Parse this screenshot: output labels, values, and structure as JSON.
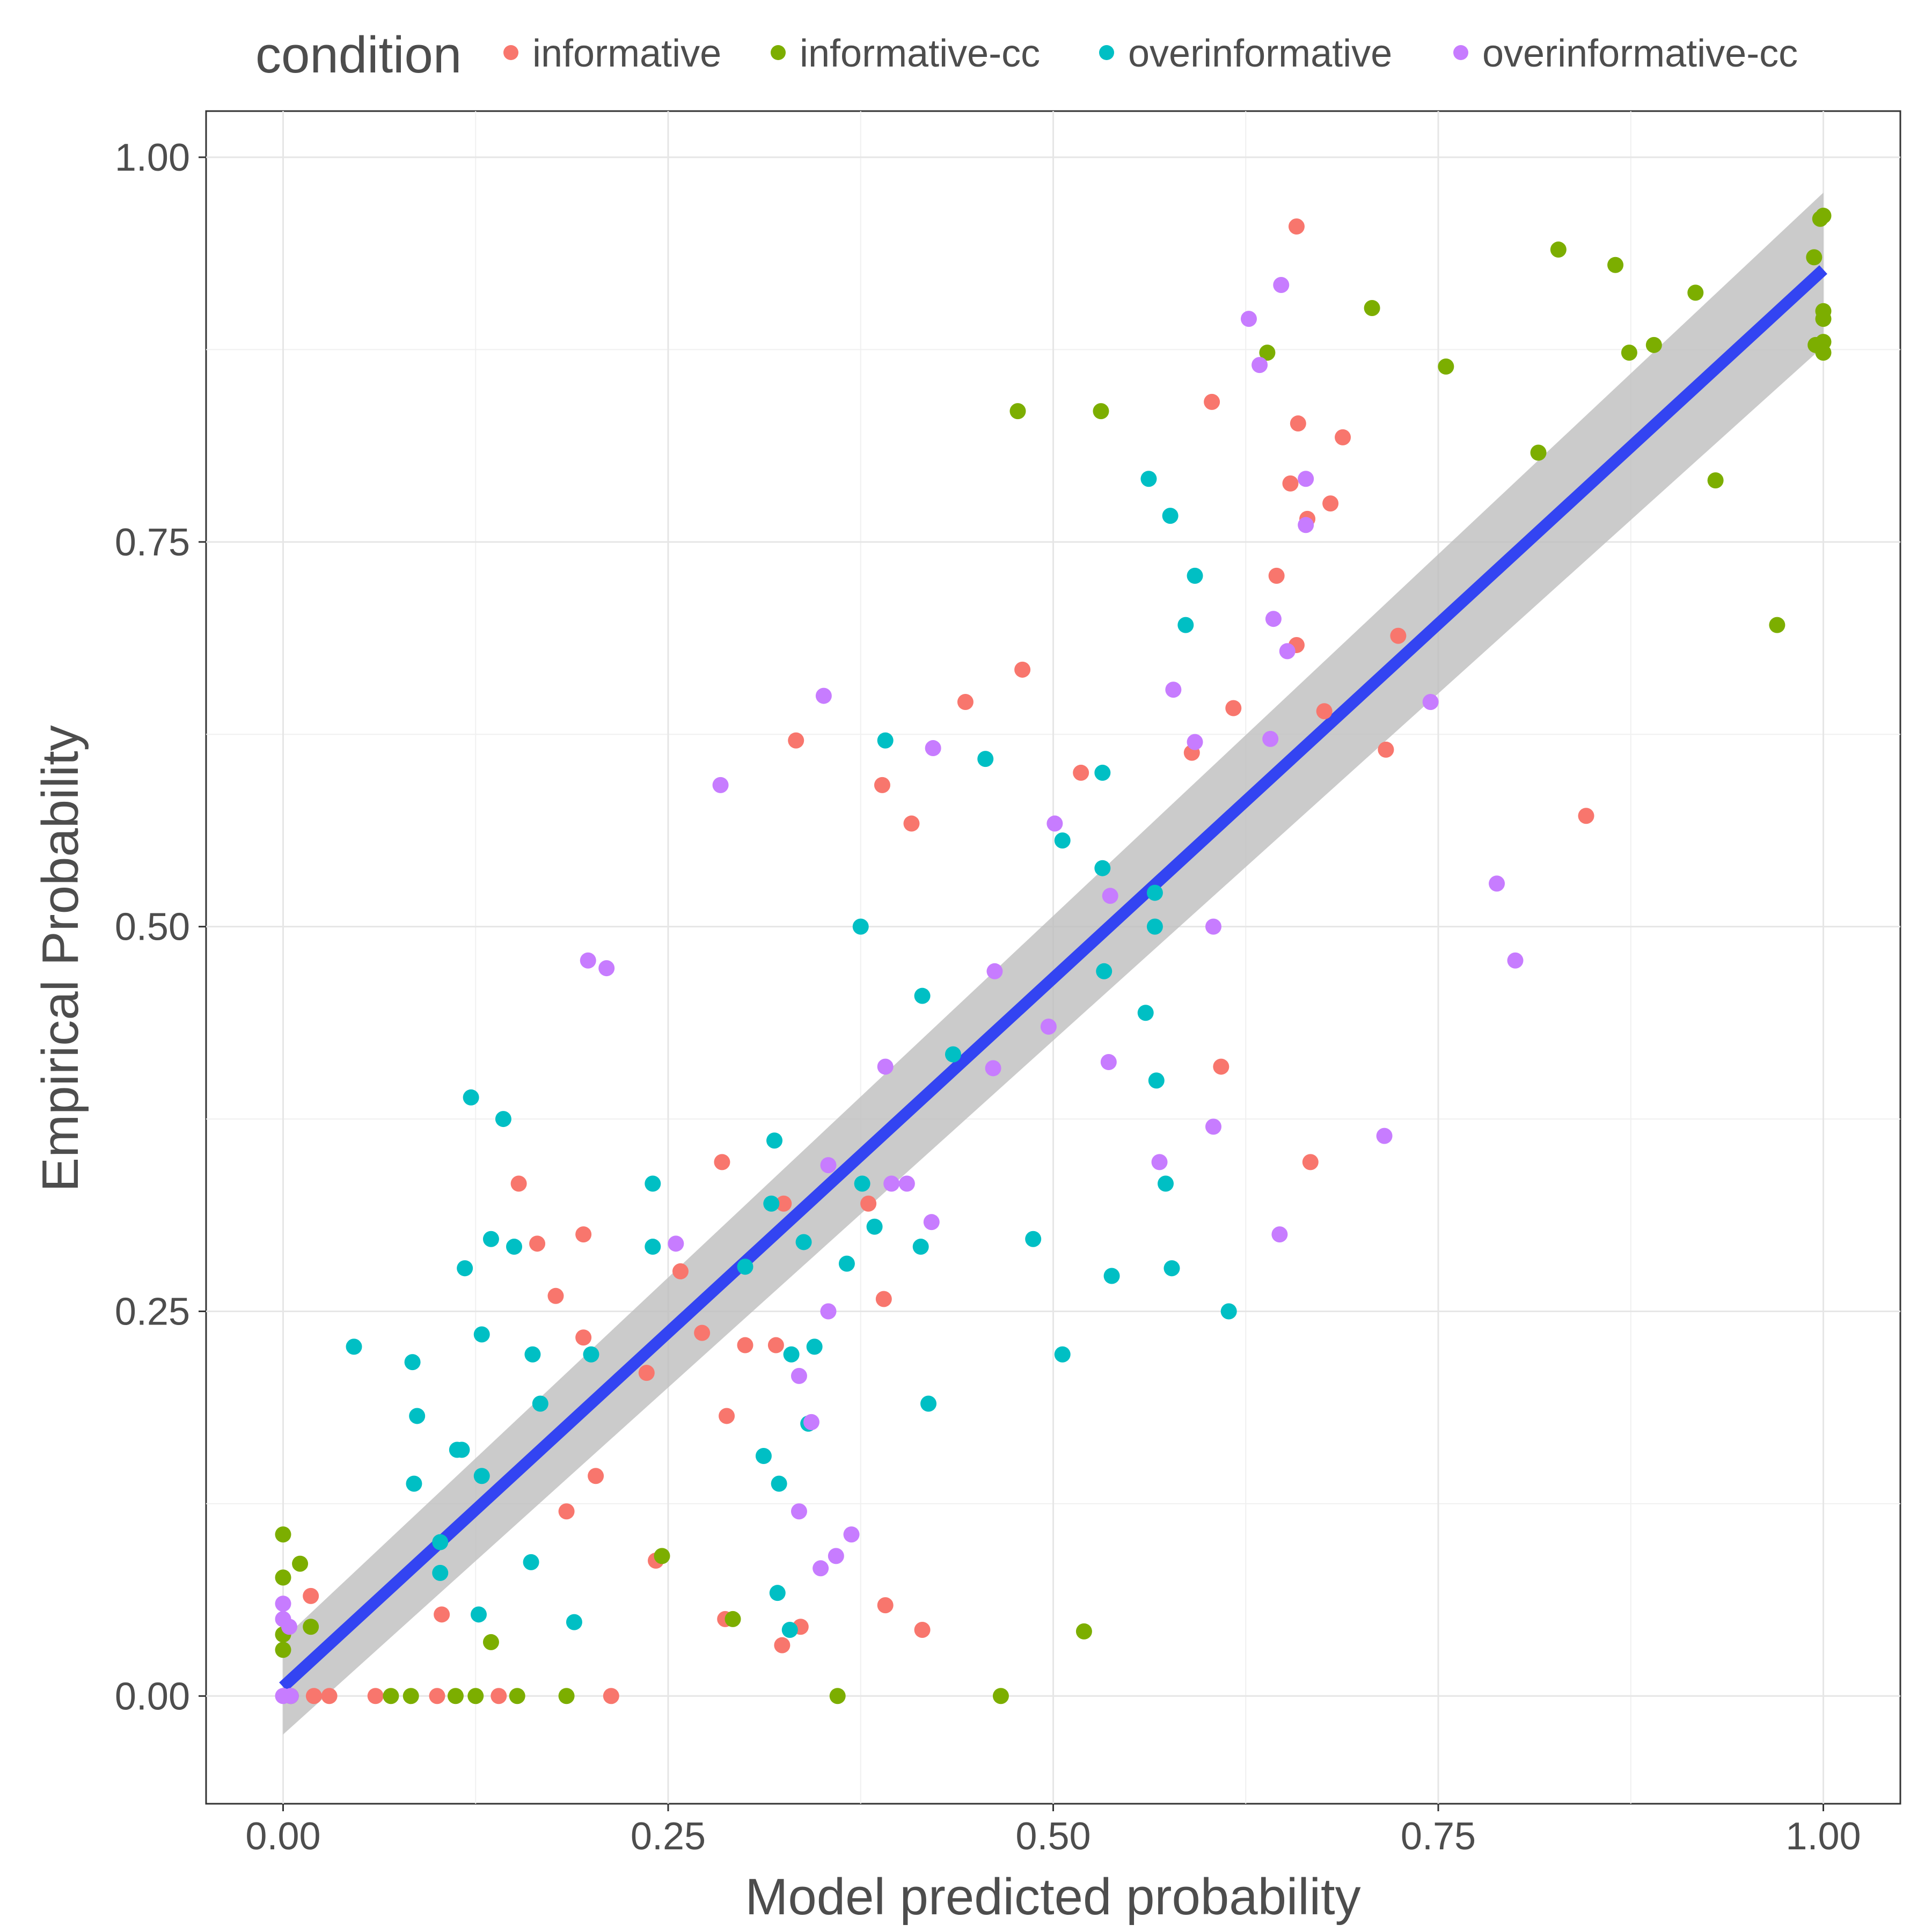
{
  "chart_data": {
    "type": "scatter",
    "xlabel": "Model predicted probability",
    "ylabel": "Empirical Probability",
    "xlim": [
      -0.05,
      1.05
    ],
    "ylim": [
      -0.07,
      1.03
    ],
    "x_ticks": [
      "0.00",
      "0.25",
      "0.50",
      "0.75",
      "1.00"
    ],
    "y_ticks": [
      "0.00",
      "0.25",
      "0.50",
      "0.75",
      "1.00"
    ],
    "grid": true,
    "legend": {
      "title": "condition",
      "position": "top",
      "entries": [
        "informative",
        "informative-cc",
        "overinformative",
        "overinformative-cc"
      ]
    },
    "colors": {
      "informative": "#F8766D",
      "informative-cc": "#7CAE00",
      "overinformative": "#00BFC4",
      "overinformative-cc": "#C77CFF",
      "fit_line": "#3344F2",
      "confidence_band": "#BEBEBE"
    },
    "fit": {
      "x": [
        0.0,
        1.0
      ],
      "y": [
        0.006,
        0.927
      ],
      "ci_lower": [
        -0.025,
        0.877
      ],
      "ci_upper": [
        0.037,
        0.977
      ]
    },
    "series": [
      {
        "name": "informative",
        "points": [
          [
            0.658,
            0.955
          ],
          [
            0.603,
            0.841
          ],
          [
            0.659,
            0.827
          ],
          [
            0.688,
            0.818
          ],
          [
            0.654,
            0.788
          ],
          [
            0.68,
            0.775
          ],
          [
            0.665,
            0.765
          ],
          [
            0.645,
            0.728
          ],
          [
            0.658,
            0.683
          ],
          [
            0.724,
            0.689
          ],
          [
            0.48,
            0.667
          ],
          [
            0.443,
            0.646
          ],
          [
            0.617,
            0.642
          ],
          [
            0.676,
            0.64
          ],
          [
            0.333,
            0.621
          ],
          [
            0.716,
            0.615
          ],
          [
            0.59,
            0.613
          ],
          [
            0.518,
            0.6
          ],
          [
            0.389,
            0.592
          ],
          [
            0.408,
            0.567
          ],
          [
            0.846,
            0.572
          ],
          [
            0.609,
            0.409
          ],
          [
            0.667,
            0.347
          ],
          [
            0.285,
            0.347
          ],
          [
            0.153,
            0.333
          ],
          [
            0.38,
            0.32
          ],
          [
            0.325,
            0.32
          ],
          [
            0.195,
            0.3
          ],
          [
            0.165,
            0.294
          ],
          [
            0.258,
            0.276
          ],
          [
            0.177,
            0.26
          ],
          [
            0.39,
            0.258
          ],
          [
            0.195,
            0.233
          ],
          [
            0.272,
            0.236
          ],
          [
            0.3,
            0.228
          ],
          [
            0.32,
            0.228
          ],
          [
            0.236,
            0.21
          ],
          [
            0.288,
            0.182
          ],
          [
            0.203,
            0.143
          ],
          [
            0.184,
            0.12
          ],
          [
            0.242,
            0.088
          ],
          [
            0.018,
            0.065
          ],
          [
            0.391,
            0.059
          ],
          [
            0.103,
            0.053
          ],
          [
            0.287,
            0.05
          ],
          [
            0.336,
            0.045
          ],
          [
            0.415,
            0.043
          ],
          [
            0.324,
            0.033
          ],
          [
            0.02,
            0.0
          ],
          [
            0.03,
            0.0
          ],
          [
            0.06,
            0.0
          ],
          [
            0.1,
            0.0
          ],
          [
            0.14,
            0.0
          ],
          [
            0.213,
            0.0
          ]
        ]
      },
      {
        "name": "informative-cc",
        "points": [
          [
            1.0,
            0.962
          ],
          [
            0.998,
            0.96
          ],
          [
            0.828,
            0.94
          ],
          [
            0.994,
            0.935
          ],
          [
            0.865,
            0.93
          ],
          [
            0.917,
            0.912
          ],
          [
            1.0,
            0.9
          ],
          [
            0.707,
            0.902
          ],
          [
            1.0,
            0.895
          ],
          [
            1.0,
            0.88
          ],
          [
            0.995,
            0.878
          ],
          [
            0.89,
            0.878
          ],
          [
            0.639,
            0.873
          ],
          [
            0.874,
            0.873
          ],
          [
            1.0,
            0.873
          ],
          [
            0.755,
            0.864
          ],
          [
            0.477,
            0.835
          ],
          [
            0.531,
            0.835
          ],
          [
            0.815,
            0.808
          ],
          [
            0.93,
            0.79
          ],
          [
            0.97,
            0.696
          ],
          [
            0.0,
            0.105
          ],
          [
            0.011,
            0.086
          ],
          [
            0.0,
            0.077
          ],
          [
            0.246,
            0.091
          ],
          [
            0.018,
            0.045
          ],
          [
            0.0,
            0.04
          ],
          [
            0.0,
            0.03
          ],
          [
            0.135,
            0.035
          ],
          [
            0.292,
            0.05
          ],
          [
            0.52,
            0.042
          ],
          [
            0.005,
            0.0
          ],
          [
            0.07,
            0.0
          ],
          [
            0.083,
            0.0
          ],
          [
            0.112,
            0.0
          ],
          [
            0.125,
            0.0
          ],
          [
            0.152,
            0.0
          ],
          [
            0.184,
            0.0
          ],
          [
            0.36,
            0.0
          ],
          [
            0.466,
            0.0
          ]
        ]
      },
      {
        "name": "overinformative",
        "points": [
          [
            0.562,
            0.791
          ],
          [
            0.576,
            0.767
          ],
          [
            0.592,
            0.728
          ],
          [
            0.586,
            0.696
          ],
          [
            0.391,
            0.621
          ],
          [
            0.456,
            0.609
          ],
          [
            0.532,
            0.6
          ],
          [
            0.506,
            0.556
          ],
          [
            0.532,
            0.538
          ],
          [
            0.566,
            0.522
          ],
          [
            0.375,
            0.5
          ],
          [
            0.566,
            0.5
          ],
          [
            0.533,
            0.471
          ],
          [
            0.415,
            0.455
          ],
          [
            0.56,
            0.444
          ],
          [
            0.435,
            0.417
          ],
          [
            0.567,
            0.4
          ],
          [
            0.122,
            0.389
          ],
          [
            0.143,
            0.375
          ],
          [
            0.319,
            0.361
          ],
          [
            0.24,
            0.333
          ],
          [
            0.573,
            0.333
          ],
          [
            0.376,
            0.333
          ],
          [
            0.317,
            0.32
          ],
          [
            0.384,
            0.305
          ],
          [
            0.135,
            0.297
          ],
          [
            0.487,
            0.297
          ],
          [
            0.338,
            0.295
          ],
          [
            0.24,
            0.292
          ],
          [
            0.15,
            0.292
          ],
          [
            0.414,
            0.292
          ],
          [
            0.366,
            0.281
          ],
          [
            0.3,
            0.279
          ],
          [
            0.118,
            0.278
          ],
          [
            0.577,
            0.278
          ],
          [
            0.538,
            0.273
          ],
          [
            0.614,
            0.25
          ],
          [
            0.046,
            0.227
          ],
          [
            0.129,
            0.235
          ],
          [
            0.345,
            0.227
          ],
          [
            0.2,
            0.222
          ],
          [
            0.162,
            0.222
          ],
          [
            0.33,
            0.222
          ],
          [
            0.506,
            0.222
          ],
          [
            0.084,
            0.217
          ],
          [
            0.167,
            0.19
          ],
          [
            0.419,
            0.19
          ],
          [
            0.087,
            0.182
          ],
          [
            0.341,
            0.177
          ],
          [
            0.113,
            0.16
          ],
          [
            0.116,
            0.16
          ],
          [
            0.312,
            0.156
          ],
          [
            0.129,
            0.143
          ],
          [
            0.085,
            0.138
          ],
          [
            0.322,
            0.138
          ],
          [
            0.102,
            0.1
          ],
          [
            0.161,
            0.087
          ],
          [
            0.102,
            0.08
          ],
          [
            0.321,
            0.067
          ],
          [
            0.127,
            0.053
          ],
          [
            0.189,
            0.048
          ],
          [
            0.329,
            0.043
          ]
        ]
      },
      {
        "name": "overinformative-cc",
        "points": [
          [
            0.648,
            0.917
          ],
          [
            0.627,
            0.895
          ],
          [
            0.634,
            0.865
          ],
          [
            0.664,
            0.791
          ],
          [
            0.664,
            0.761
          ],
          [
            0.643,
            0.7
          ],
          [
            0.652,
            0.679
          ],
          [
            0.578,
            0.654
          ],
          [
            0.351,
            0.65
          ],
          [
            0.745,
            0.646
          ],
          [
            0.641,
            0.622
          ],
          [
            0.592,
            0.62
          ],
          [
            0.422,
            0.616
          ],
          [
            0.284,
            0.592
          ],
          [
            0.501,
            0.567
          ],
          [
            0.537,
            0.52
          ],
          [
            0.788,
            0.528
          ],
          [
            0.604,
            0.5
          ],
          [
            0.198,
            0.478
          ],
          [
            0.21,
            0.473
          ],
          [
            0.8,
            0.478
          ],
          [
            0.462,
            0.471
          ],
          [
            0.497,
            0.435
          ],
          [
            0.536,
            0.412
          ],
          [
            0.391,
            0.409
          ],
          [
            0.461,
            0.408
          ],
          [
            0.604,
            0.37
          ],
          [
            0.715,
            0.364
          ],
          [
            0.569,
            0.347
          ],
          [
            0.354,
            0.345
          ],
          [
            0.395,
            0.333
          ],
          [
            0.405,
            0.333
          ],
          [
            0.647,
            0.3
          ],
          [
            0.255,
            0.294
          ],
          [
            0.421,
            0.308
          ],
          [
            0.354,
            0.25
          ],
          [
            0.335,
            0.208
          ],
          [
            0.343,
            0.178
          ],
          [
            0.335,
            0.12
          ],
          [
            0.369,
            0.105
          ],
          [
            0.359,
            0.091
          ],
          [
            0.349,
            0.083
          ],
          [
            0.0,
            0.06
          ],
          [
            0.0,
            0.05
          ],
          [
            0.004,
            0.045
          ],
          [
            0.0,
            0.0
          ],
          [
            0.005,
            0.0
          ]
        ]
      }
    ]
  }
}
